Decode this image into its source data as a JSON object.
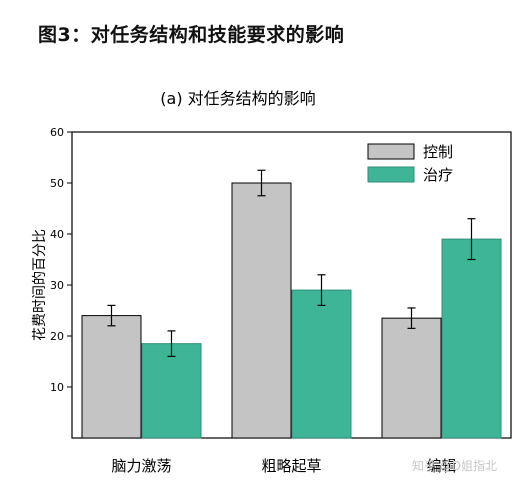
{
  "figure_title": "图3：对任务结构和技能要求的影响",
  "watermark": "知乎 @D姐指北",
  "colors": {
    "control": "#c4c4c4",
    "treatment": "#3fb598"
  },
  "chart_data": {
    "type": "bar",
    "title": "(a) 对任务结构的影响",
    "xlabel": "",
    "ylabel": "花费时间的百分比",
    "categories": [
      "脑力激荡",
      "粗略起草",
      "编辑"
    ],
    "series": [
      {
        "name": "控制",
        "color": "#c4c4c4",
        "values": [
          24,
          50,
          23.5
        ],
        "errors": [
          2,
          2.5,
          2
        ]
      },
      {
        "name": "治疗",
        "color": "#3fb598",
        "values": [
          18.5,
          29,
          39
        ],
        "errors": [
          2.5,
          3,
          4
        ]
      }
    ],
    "ylim": [
      0,
      60
    ],
    "yticks": [
      10,
      20,
      30,
      40,
      50,
      60
    ],
    "grid": false,
    "legend_position": "top-right"
  }
}
